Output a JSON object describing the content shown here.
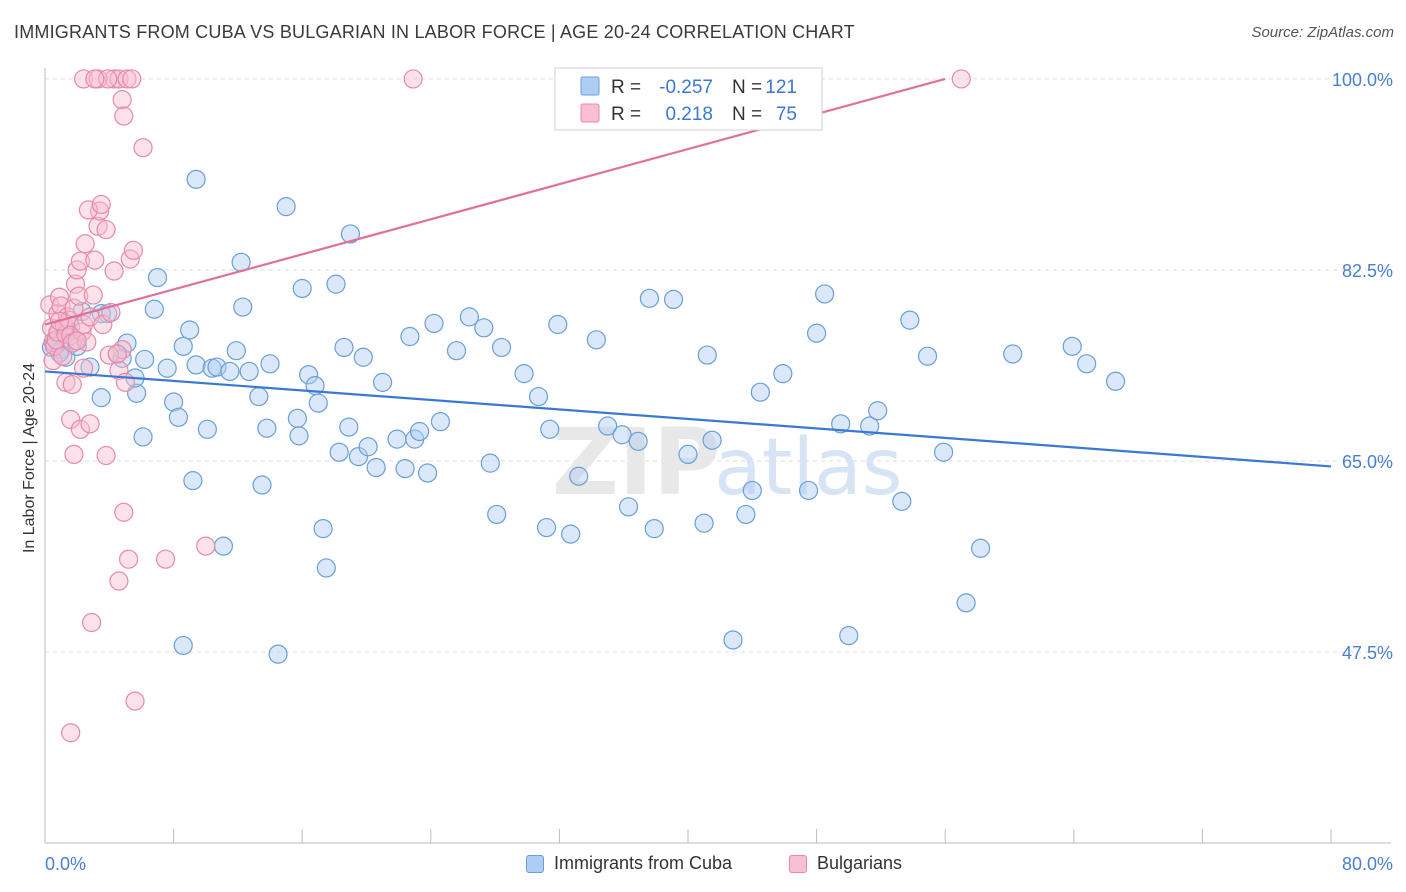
{
  "header": {
    "title": "IMMIGRANTS FROM CUBA VS BULGARIAN IN LABOR FORCE | AGE 20-24 CORRELATION CHART",
    "source": "Source: ZipAtlas.com"
  },
  "watermark": {
    "zip": "ZIP",
    "atlas": "atlas"
  },
  "legend": {
    "rows": [
      {
        "r_label": "R =",
        "r_value": "-0.257",
        "n_label": "N =",
        "n_value": "121"
      },
      {
        "r_label": "R =",
        "r_value": "0.218",
        "n_label": "N =",
        "n_value": "75"
      }
    ]
  },
  "colors": {
    "blue_fill": "#aecdf2",
    "blue_stroke": "#6a9fd8",
    "blue_line": "#3a78d4",
    "pink_fill": "#f7bfd0",
    "pink_stroke": "#e889a8",
    "pink_line": "#e0709a",
    "axis_text": "#4a7fcf",
    "grid": "#dcdcdc"
  },
  "chart_data": {
    "type": "scatter",
    "title": "IMMIGRANTS FROM CUBA VS BULGARIAN IN LABOR FORCE | AGE 20-24 CORRELATION CHART",
    "xlabel": "",
    "ylabel": "In Labor Force | Age 20-24",
    "xlim": [
      0,
      80
    ],
    "ylim": [
      30,
      101
    ],
    "x_tick_labels": [
      "0.0%",
      "80.0%"
    ],
    "y_ticks": [
      47.5,
      65.0,
      82.5,
      100.0
    ],
    "y_tick_labels": [
      "47.5%",
      "65.0%",
      "82.5%",
      "100.0%"
    ],
    "grid": true,
    "legend_position": "top-center",
    "series": [
      {
        "name": "Immigrants from Cuba",
        "r": -0.257,
        "n": 121,
        "trend": {
          "x": [
            0,
            80
          ],
          "y": [
            73.2,
            64.5
          ]
        },
        "points": [
          [
            0.4,
            75.4
          ],
          [
            0.6,
            75.8
          ],
          [
            0.8,
            76.6
          ],
          [
            1.0,
            75.2
          ],
          [
            1.3,
            74.5
          ],
          [
            1.6,
            77.3
          ],
          [
            1.9,
            76.0
          ],
          [
            2.3,
            78.7
          ],
          [
            2.8,
            73.6
          ],
          [
            3.5,
            70.8
          ],
          [
            3.9,
            78.5
          ],
          [
            4.5,
            74.8
          ],
          [
            4.8,
            74.4
          ],
          [
            5.1,
            75.8
          ],
          [
            5.7,
            71.2
          ],
          [
            6.2,
            74.3
          ],
          [
            6.8,
            78.9
          ],
          [
            7.0,
            81.8
          ],
          [
            7.6,
            73.5
          ],
          [
            8.0,
            70.4
          ],
          [
            8.3,
            69.0
          ],
          [
            8.6,
            75.5
          ],
          [
            9.4,
            73.8
          ],
          [
            9.0,
            77.0
          ],
          [
            9.2,
            63.2
          ],
          [
            10.1,
            67.9
          ],
          [
            10.4,
            73.5
          ],
          [
            10.7,
            73.6
          ],
          [
            11.1,
            57.2
          ],
          [
            11.5,
            73.2
          ],
          [
            11.9,
            75.1
          ],
          [
            12.3,
            79.1
          ],
          [
            12.2,
            83.2
          ],
          [
            12.7,
            73.2
          ],
          [
            13.3,
            70.9
          ],
          [
            13.5,
            62.8
          ],
          [
            13.8,
            68.0
          ],
          [
            14.0,
            73.9
          ],
          [
            9.4,
            90.8
          ],
          [
            15.0,
            88.3
          ],
          [
            15.7,
            68.9
          ],
          [
            15.8,
            67.3
          ],
          [
            16.0,
            80.8
          ],
          [
            16.4,
            72.9
          ],
          [
            16.8,
            71.9
          ],
          [
            17.0,
            70.3
          ],
          [
            17.3,
            58.8
          ],
          [
            17.5,
            55.2
          ],
          [
            18.1,
            81.2
          ],
          [
            18.3,
            65.8
          ],
          [
            18.6,
            75.4
          ],
          [
            18.9,
            68.1
          ],
          [
            19.0,
            85.8
          ],
          [
            19.5,
            65.4
          ],
          [
            19.8,
            74.5
          ],
          [
            20.1,
            66.3
          ],
          [
            20.6,
            64.4
          ],
          [
            21.0,
            72.2
          ],
          [
            21.9,
            67.0
          ],
          [
            22.4,
            64.3
          ],
          [
            22.7,
            76.4
          ],
          [
            23.0,
            67.0
          ],
          [
            23.3,
            67.7
          ],
          [
            23.8,
            63.9
          ],
          [
            24.2,
            77.6
          ],
          [
            24.6,
            68.6
          ],
          [
            25.6,
            75.1
          ],
          [
            26.4,
            78.2
          ],
          [
            27.3,
            77.2
          ],
          [
            27.7,
            64.8
          ],
          [
            28.1,
            60.1
          ],
          [
            28.4,
            75.4
          ],
          [
            29.8,
            73.0
          ],
          [
            30.7,
            70.9
          ],
          [
            31.2,
            58.9
          ],
          [
            31.4,
            67.9
          ],
          [
            31.9,
            77.5
          ],
          [
            32.7,
            58.3
          ],
          [
            33.2,
            63.6
          ],
          [
            34.3,
            76.1
          ],
          [
            35.0,
            68.2
          ],
          [
            35.9,
            67.4
          ],
          [
            36.3,
            60.8
          ],
          [
            36.9,
            66.8
          ],
          [
            37.6,
            79.9
          ],
          [
            37.9,
            58.8
          ],
          [
            39.1,
            79.8
          ],
          [
            40.0,
            65.6
          ],
          [
            41.0,
            59.3
          ],
          [
            41.2,
            74.7
          ],
          [
            41.5,
            66.9
          ],
          [
            42.8,
            48.6
          ],
          [
            43.6,
            60.1
          ],
          [
            44.0,
            62.3
          ],
          [
            44.5,
            71.3
          ],
          [
            45.9,
            73.0
          ],
          [
            47.5,
            62.3
          ],
          [
            48.0,
            76.7
          ],
          [
            48.5,
            80.3
          ],
          [
            49.5,
            68.4
          ],
          [
            50.0,
            49.0
          ],
          [
            51.3,
            68.2
          ],
          [
            51.8,
            69.6
          ],
          [
            53.3,
            61.3
          ],
          [
            53.8,
            77.9
          ],
          [
            54.9,
            74.6
          ],
          [
            55.9,
            65.8
          ],
          [
            57.3,
            52.0
          ],
          [
            58.2,
            57.0
          ],
          [
            60.2,
            74.8
          ],
          [
            63.9,
            75.5
          ],
          [
            64.8,
            73.9
          ],
          [
            66.6,
            72.3
          ],
          [
            3.5,
            78.5
          ],
          [
            8.6,
            48.1
          ],
          [
            14.5,
            47.3
          ],
          [
            1.3,
            77.0
          ],
          [
            2.0,
            75.5
          ],
          [
            0.9,
            74.9
          ],
          [
            5.6,
            72.6
          ],
          [
            6.1,
            67.2
          ]
        ]
      },
      {
        "name": "Bulgarians",
        "r": 0.218,
        "n": 75,
        "trend": {
          "x": [
            0,
            56
          ],
          "y": [
            77.5,
            100.0
          ]
        },
        "points": [
          [
            0.3,
            79.3
          ],
          [
            0.4,
            77.2
          ],
          [
            0.5,
            75.9
          ],
          [
            0.5,
            74.2
          ],
          [
            0.6,
            75.5
          ],
          [
            0.7,
            76.1
          ],
          [
            0.8,
            76.8
          ],
          [
            0.8,
            78.5
          ],
          [
            0.9,
            80.0
          ],
          [
            1.0,
            79.2
          ],
          [
            1.1,
            74.6
          ],
          [
            1.2,
            77.4
          ],
          [
            1.3,
            76.6
          ],
          [
            1.4,
            78.2
          ],
          [
            1.5,
            77.9
          ],
          [
            1.6,
            76.5
          ],
          [
            1.7,
            75.8
          ],
          [
            1.8,
            79.0
          ],
          [
            1.9,
            81.2
          ],
          [
            2.0,
            82.5
          ],
          [
            2.1,
            80.1
          ],
          [
            2.2,
            83.3
          ],
          [
            2.3,
            76.8
          ],
          [
            2.4,
            77.5
          ],
          [
            2.5,
            84.9
          ],
          [
            2.6,
            75.9
          ],
          [
            2.8,
            78.2
          ],
          [
            3.0,
            80.2
          ],
          [
            3.1,
            83.4
          ],
          [
            3.3,
            86.5
          ],
          [
            3.4,
            87.9
          ],
          [
            3.6,
            77.5
          ],
          [
            3.8,
            86.2
          ],
          [
            4.1,
            78.6
          ],
          [
            4.3,
            82.4
          ],
          [
            4.6,
            73.3
          ],
          [
            4.8,
            75.2
          ],
          [
            5.0,
            72.2
          ],
          [
            5.3,
            83.5
          ],
          [
            5.5,
            84.3
          ],
          [
            2.7,
            88.0
          ],
          [
            3.5,
            88.5
          ],
          [
            4.3,
            100.0
          ],
          [
            4.6,
            100.0
          ],
          [
            5.1,
            100.0
          ],
          [
            5.4,
            100.0
          ],
          [
            2.4,
            100.0
          ],
          [
            3.3,
            100.0
          ],
          [
            3.9,
            100.0
          ],
          [
            4.8,
            98.1
          ],
          [
            4.9,
            96.6
          ],
          [
            3.1,
            100.0
          ],
          [
            22.9,
            100.0
          ],
          [
            57.0,
            100.0
          ],
          [
            6.1,
            93.7
          ],
          [
            4.0,
            74.7
          ],
          [
            4.5,
            74.8
          ],
          [
            1.3,
            72.2
          ],
          [
            1.6,
            68.8
          ],
          [
            1.7,
            72.0
          ],
          [
            2.2,
            67.9
          ],
          [
            2.8,
            68.4
          ],
          [
            1.8,
            65.6
          ],
          [
            3.8,
            65.5
          ],
          [
            4.9,
            60.3
          ],
          [
            7.5,
            56.0
          ],
          [
            5.2,
            56.0
          ],
          [
            4.6,
            54.0
          ],
          [
            2.9,
            50.2
          ],
          [
            5.6,
            43.0
          ],
          [
            1.6,
            40.1
          ],
          [
            2.0,
            76.0
          ],
          [
            10.0,
            57.2
          ],
          [
            0.9,
            77.8
          ],
          [
            2.4,
            73.5
          ]
        ]
      }
    ]
  }
}
